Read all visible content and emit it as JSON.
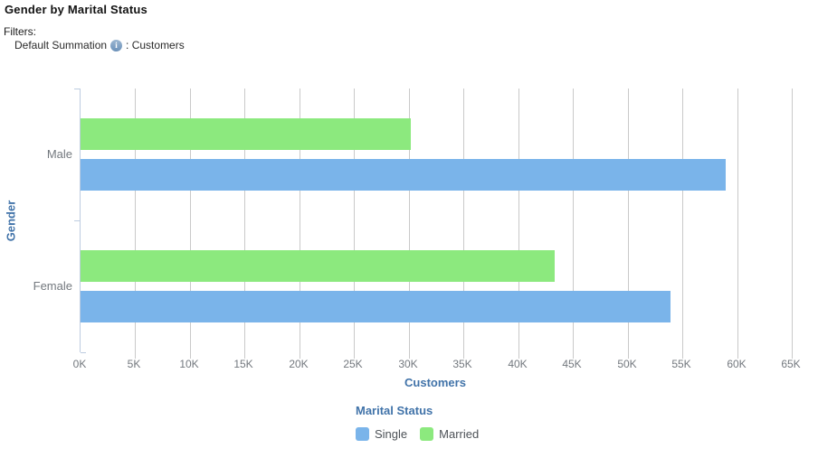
{
  "header": {
    "title": "Gender by Marital Status",
    "filters_label": "Filters:",
    "filter_name": "Default Summation",
    "info_glyph": "i",
    "filter_value": ": Customers"
  },
  "chart_data": {
    "type": "bar",
    "orientation": "horizontal",
    "categories": [
      "Male",
      "Female"
    ],
    "series": [
      {
        "name": "Single",
        "color": "#7ab4ea",
        "values": [
          59000,
          53900
        ]
      },
      {
        "name": "Married",
        "color": "#8ce97e",
        "values": [
          30200,
          43300
        ]
      }
    ],
    "xlabel": "Customers",
    "ylabel": "Gender",
    "xlim": [
      0,
      65000
    ],
    "x_tick_step": 5000,
    "x_tick_labels": [
      "0K",
      "5K",
      "10K",
      "15K",
      "20K",
      "25K",
      "30K",
      "35K",
      "40K",
      "45K",
      "50K",
      "55K",
      "60K",
      "65K"
    ],
    "grid": true,
    "legend": {
      "title": "Marital Status",
      "position": "bottom",
      "entries": [
        "Single",
        "Married"
      ]
    }
  },
  "colors": {
    "bar_single": "#7ab4ea",
    "bar_married": "#8ce97e",
    "axis_title": "#4173a9",
    "tick_label": "#73787e",
    "gridline": "#c9c9c9",
    "axis_line": "#bdcce0"
  }
}
